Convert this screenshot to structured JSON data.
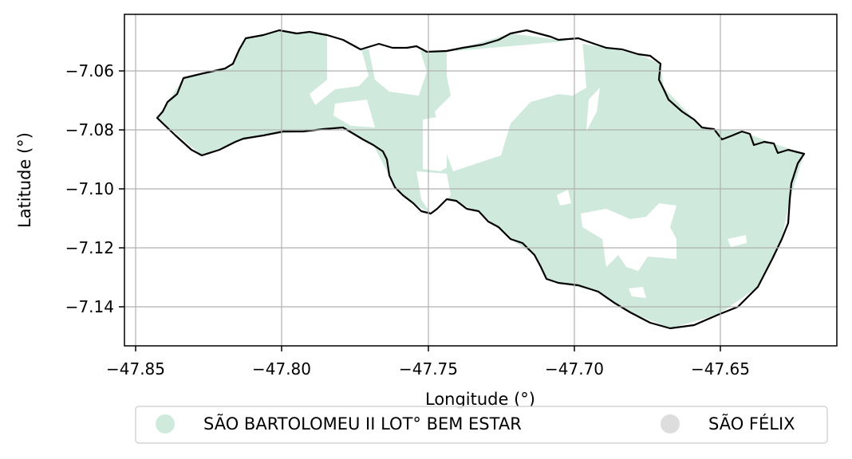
{
  "chart_data": {
    "type": "map",
    "xlabel": "Longitude (°)",
    "ylabel": "Latitude (°)",
    "xlim": [
      -47.854,
      -47.611
    ],
    "ylim": [
      -7.1534,
      -7.0422
    ],
    "xticks": [
      -47.85,
      -47.8,
      -47.75,
      -47.7,
      -47.65
    ],
    "xtick_labels": [
      "−47.85",
      "−47.80",
      "−47.75",
      "−47.70",
      "−47.65"
    ],
    "yticks": [
      -7.06,
      -7.08,
      -7.1,
      -7.12,
      -7.14
    ],
    "ytick_labels": [
      "−7.06",
      "−7.08",
      "−7.10",
      "−7.12",
      "−7.14"
    ],
    "grid": true,
    "legend_position": "bottom-center",
    "legend": [
      {
        "label": "SÃO BARTOLOMEU II LOT° BEM ESTAR",
        "color": "#cfeadc"
      },
      {
        "label": "SÃO FÉLIX",
        "color": "#dddddd"
      }
    ],
    "boundary_color": "#000000",
    "fill_color": "#cfeadc"
  }
}
